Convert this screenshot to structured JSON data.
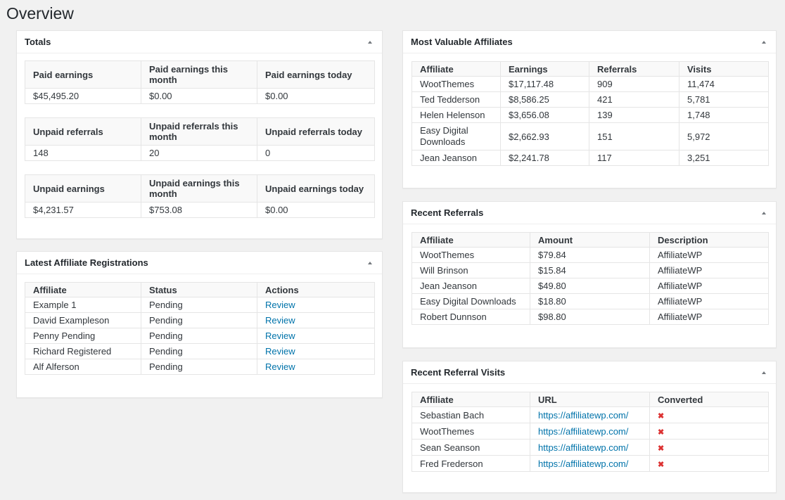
{
  "page_title": "Overview",
  "totals": {
    "title": "Totals",
    "groups": [
      {
        "headers": [
          "Paid earnings",
          "Paid earnings this month",
          "Paid earnings today"
        ],
        "values": [
          "$45,495.20",
          "$0.00",
          "$0.00"
        ]
      },
      {
        "headers": [
          "Unpaid referrals",
          "Unpaid referrals this month",
          "Unpaid referrals today"
        ],
        "values": [
          "148",
          "20",
          "0"
        ]
      },
      {
        "headers": [
          "Unpaid earnings",
          "Unpaid earnings this month",
          "Unpaid earnings today"
        ],
        "values": [
          "$4,231.57",
          "$753.08",
          "$0.00"
        ]
      }
    ]
  },
  "registrations": {
    "title": "Latest Affiliate Registrations",
    "columns": [
      "Affiliate",
      "Status",
      "Actions"
    ],
    "rows": [
      [
        "Example 1",
        "Pending",
        "Review"
      ],
      [
        "David Exampleson",
        "Pending",
        "Review"
      ],
      [
        "Penny Pending",
        "Pending",
        "Review"
      ],
      [
        "Richard Registered",
        "Pending",
        "Review"
      ],
      [
        "Alf Alferson",
        "Pending",
        "Review"
      ]
    ]
  },
  "valuable": {
    "title": "Most Valuable Affiliates",
    "columns": [
      "Affiliate",
      "Earnings",
      "Referrals",
      "Visits"
    ],
    "rows": [
      [
        "WootThemes",
        "$17,117.48",
        "909",
        "11,474"
      ],
      [
        "Ted Tedderson",
        "$8,586.25",
        "421",
        "5,781"
      ],
      [
        "Helen Helenson",
        "$3,656.08",
        "139",
        "1,748"
      ],
      [
        "Easy Digital Downloads",
        "$2,662.93",
        "151",
        "5,972"
      ],
      [
        "Jean Jeanson",
        "$2,241.78",
        "117",
        "3,251"
      ]
    ]
  },
  "referrals": {
    "title": "Recent Referrals",
    "columns": [
      "Affiliate",
      "Amount",
      "Description"
    ],
    "rows": [
      [
        "WootThemes",
        "$79.84",
        "AffiliateWP"
      ],
      [
        "Will Brinson",
        "$15.84",
        "AffiliateWP"
      ],
      [
        "Jean Jeanson",
        "$49.80",
        "AffiliateWP"
      ],
      [
        "Easy Digital Downloads",
        "$18.80",
        "AffiliateWP"
      ],
      [
        "Robert Dunnson",
        "$98.80",
        "AffiliateWP"
      ]
    ]
  },
  "visits": {
    "title": "Recent Referral Visits",
    "columns": [
      "Affiliate",
      "URL",
      "Converted"
    ],
    "rows": [
      [
        "Sebastian Bach",
        "https://affiliatewp.com/",
        "x-icon"
      ],
      [
        "WootThemes",
        "https://affiliatewp.com/",
        "x-icon"
      ],
      [
        "Sean Seanson",
        "https://affiliatewp.com/",
        "x-icon"
      ],
      [
        "Fred Frederson",
        "https://affiliatewp.com/",
        "x-icon"
      ]
    ]
  },
  "colors": {
    "link": "#0073aa",
    "not_converted": "#dc3232",
    "background": "#f1f1f1"
  }
}
